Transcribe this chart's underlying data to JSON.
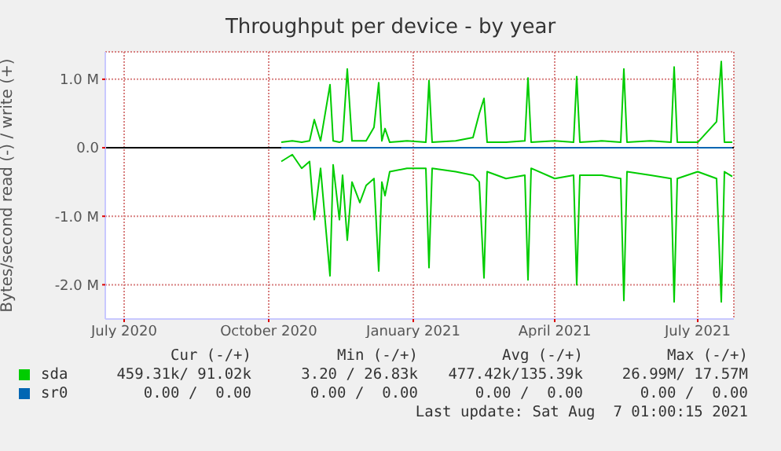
{
  "chart_data": {
    "type": "line",
    "title": "Throughput per device - by year",
    "ylabel": "Bytes/second read (-) / write (+)",
    "x": [
      "2020-10-09",
      "2020-10-16",
      "2020-10-22",
      "2020-10-27",
      "2020-10-30",
      "2020-11-03",
      "2020-11-09",
      "2020-11-11",
      "2020-11-15",
      "2020-11-17",
      "2020-11-20",
      "2020-11-23",
      "2020-11-28",
      "2020-12-02",
      "2020-12-07",
      "2020-12-10",
      "2020-12-12",
      "2020-12-14",
      "2020-12-17",
      "2020-12-28",
      "2021-01-09",
      "2021-01-11",
      "2021-01-13",
      "2021-01-28",
      "2021-02-08",
      "2021-02-12",
      "2021-02-15",
      "2021-02-17",
      "2021-03-01",
      "2021-03-13",
      "2021-03-15",
      "2021-03-17",
      "2021-04-01",
      "2021-04-13",
      "2021-04-15",
      "2021-04-17",
      "2021-05-01",
      "2021-05-13",
      "2021-05-15",
      "2021-05-17",
      "2021-06-01",
      "2021-06-14",
      "2021-06-16",
      "2021-06-18",
      "2021-07-01",
      "2021-07-13",
      "2021-07-16",
      "2021-07-18",
      "2021-07-23"
    ],
    "series": [
      {
        "name": "sda",
        "color": "#00cc00",
        "values": [
          80000,
          100000,
          80000,
          100000,
          410000,
          100000,
          920000,
          100000,
          80000,
          100000,
          1150000,
          100000,
          100000,
          100000,
          300000,
          950000,
          100000,
          280000,
          80000,
          100000,
          80000,
          980000,
          80000,
          100000,
          150000,
          500000,
          720000,
          80000,
          80000,
          100000,
          1020000,
          80000,
          100000,
          80000,
          1040000,
          80000,
          100000,
          80000,
          1150000,
          80000,
          100000,
          80000,
          1180000,
          80000,
          80000,
          380000,
          1260000,
          80000,
          80000
        ]
      },
      {
        "color": "#00cc00",
        "values": [
          -200000,
          -100000,
          -300000,
          -200000,
          -1050000,
          -300000,
          -1870000,
          -250000,
          -1050000,
          -400000,
          -1350000,
          -500000,
          -800000,
          -550000,
          -450000,
          -1800000,
          -500000,
          -700000,
          -350000,
          -300000,
          -300000,
          -1750000,
          -300000,
          -350000,
          -400000,
          -500000,
          -1900000,
          -350000,
          -450000,
          -400000,
          -1930000,
          -300000,
          -450000,
          -400000,
          -2000000,
          -400000,
          -400000,
          -450000,
          -2230000,
          -350000,
          -400000,
          -450000,
          -2250000,
          -450000,
          -350000,
          -450000,
          -2250000,
          -350000,
          -420000
        ]
      },
      {
        "name": "sr0",
        "color": "#0066b3",
        "values": [
          0,
          0,
          0,
          0,
          0,
          0,
          0,
          0,
          0,
          0,
          0,
          0,
          0,
          0,
          0,
          0,
          0,
          0,
          0,
          0,
          0,
          0,
          0,
          0,
          0,
          0,
          0,
          0,
          0,
          0,
          0,
          0,
          0,
          0,
          0,
          0,
          0,
          0,
          0,
          0,
          0,
          0,
          0,
          0,
          0,
          0,
          0,
          0,
          0
        ]
      }
    ],
    "xlim": [
      "2020-06-19",
      "2021-07-24"
    ],
    "xticks": [
      {
        "value": "2020-07-01",
        "label": "July 2020"
      },
      {
        "value": "2020-10-01",
        "label": "October 2020"
      },
      {
        "value": "2021-01-01",
        "label": "January 2021"
      },
      {
        "value": "2021-04-01",
        "label": "April 2021"
      },
      {
        "value": "2021-07-01",
        "label": "July 2021"
      }
    ],
    "ylim": [
      -2500000,
      1400000
    ],
    "yticks": [
      {
        "value": -2000000,
        "label": "-2.0 M"
      },
      {
        "value": -1000000,
        "label": "-1.0 M"
      },
      {
        "value": 0,
        "label": "0.0"
      },
      {
        "value": 1000000,
        "label": "1.0 M"
      }
    ],
    "ref_lines": [
      {
        "axis": "y",
        "value": 0,
        "color": "#000000"
      }
    ],
    "grid": true,
    "legend": "bottom",
    "marker": "none",
    "line_style": "solid",
    "annotations": [
      "Cur (-/+)",
      "Min (-/+)",
      "Avg (-/+)",
      "Max (-/+)",
      "459.31k/ 91.02k",
      "3.20 / 26.83k",
      "477.42k/135.39k",
      "26.99M/ 17.57M",
      "0.00 /  0.00",
      "0.00 /  0.00",
      "0.00 /  0.00",
      "0.00 /  0.00",
      "Last update: Sat Aug  7 01:00:15 2021"
    ]
  }
}
